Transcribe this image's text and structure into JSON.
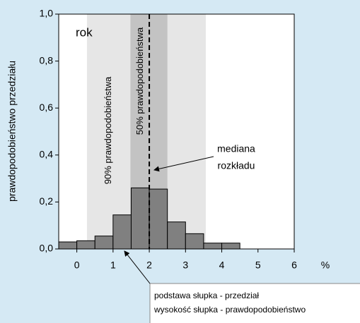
{
  "chart_data": {
    "type": "histogram",
    "y_label": "prawdopodobieństwo przedziału",
    "x_label": "%",
    "panel_label": "rok",
    "bins": [
      -0.5,
      0,
      0.5,
      1,
      1.5,
      2,
      2.5,
      3,
      3.5,
      4,
      4.5
    ],
    "values": [
      0.03,
      0.035,
      0.055,
      0.145,
      0.26,
      0.255,
      0.115,
      0.065,
      0.025,
      0.025
    ],
    "color": "#808080",
    "xlim": [
      -0.5,
      6
    ],
    "xticks": [
      0,
      1,
      2,
      3,
      4,
      5,
      6
    ],
    "ylim": [
      0,
      1
    ],
    "yticks": [
      {
        "value": 0,
        "label": "0,0"
      },
      {
        "value": 0.2,
        "label": "0,2"
      },
      {
        "value": 0.4,
        "label": "0,4"
      },
      {
        "value": 0.6,
        "label": "0,6"
      },
      {
        "value": 0.8,
        "label": "0,8"
      },
      {
        "value": 1,
        "label": "1,0"
      }
    ],
    "intervals": [
      {
        "label": "90% prawdopodobieństwa",
        "range": [
          0.28,
          3.56
        ],
        "color": "#e6e6e6"
      },
      {
        "label": "50% prawdopodobieństwa",
        "range": [
          1.48,
          2.5
        ],
        "color": "#c3c3c3"
      }
    ],
    "median": {
      "value": 2,
      "label": [
        "mediana",
        "rozkładu"
      ]
    },
    "legend": [
      "podstawa słupka - przedział",
      "wysokość słupka - prawdopodobieństwo"
    ]
  }
}
